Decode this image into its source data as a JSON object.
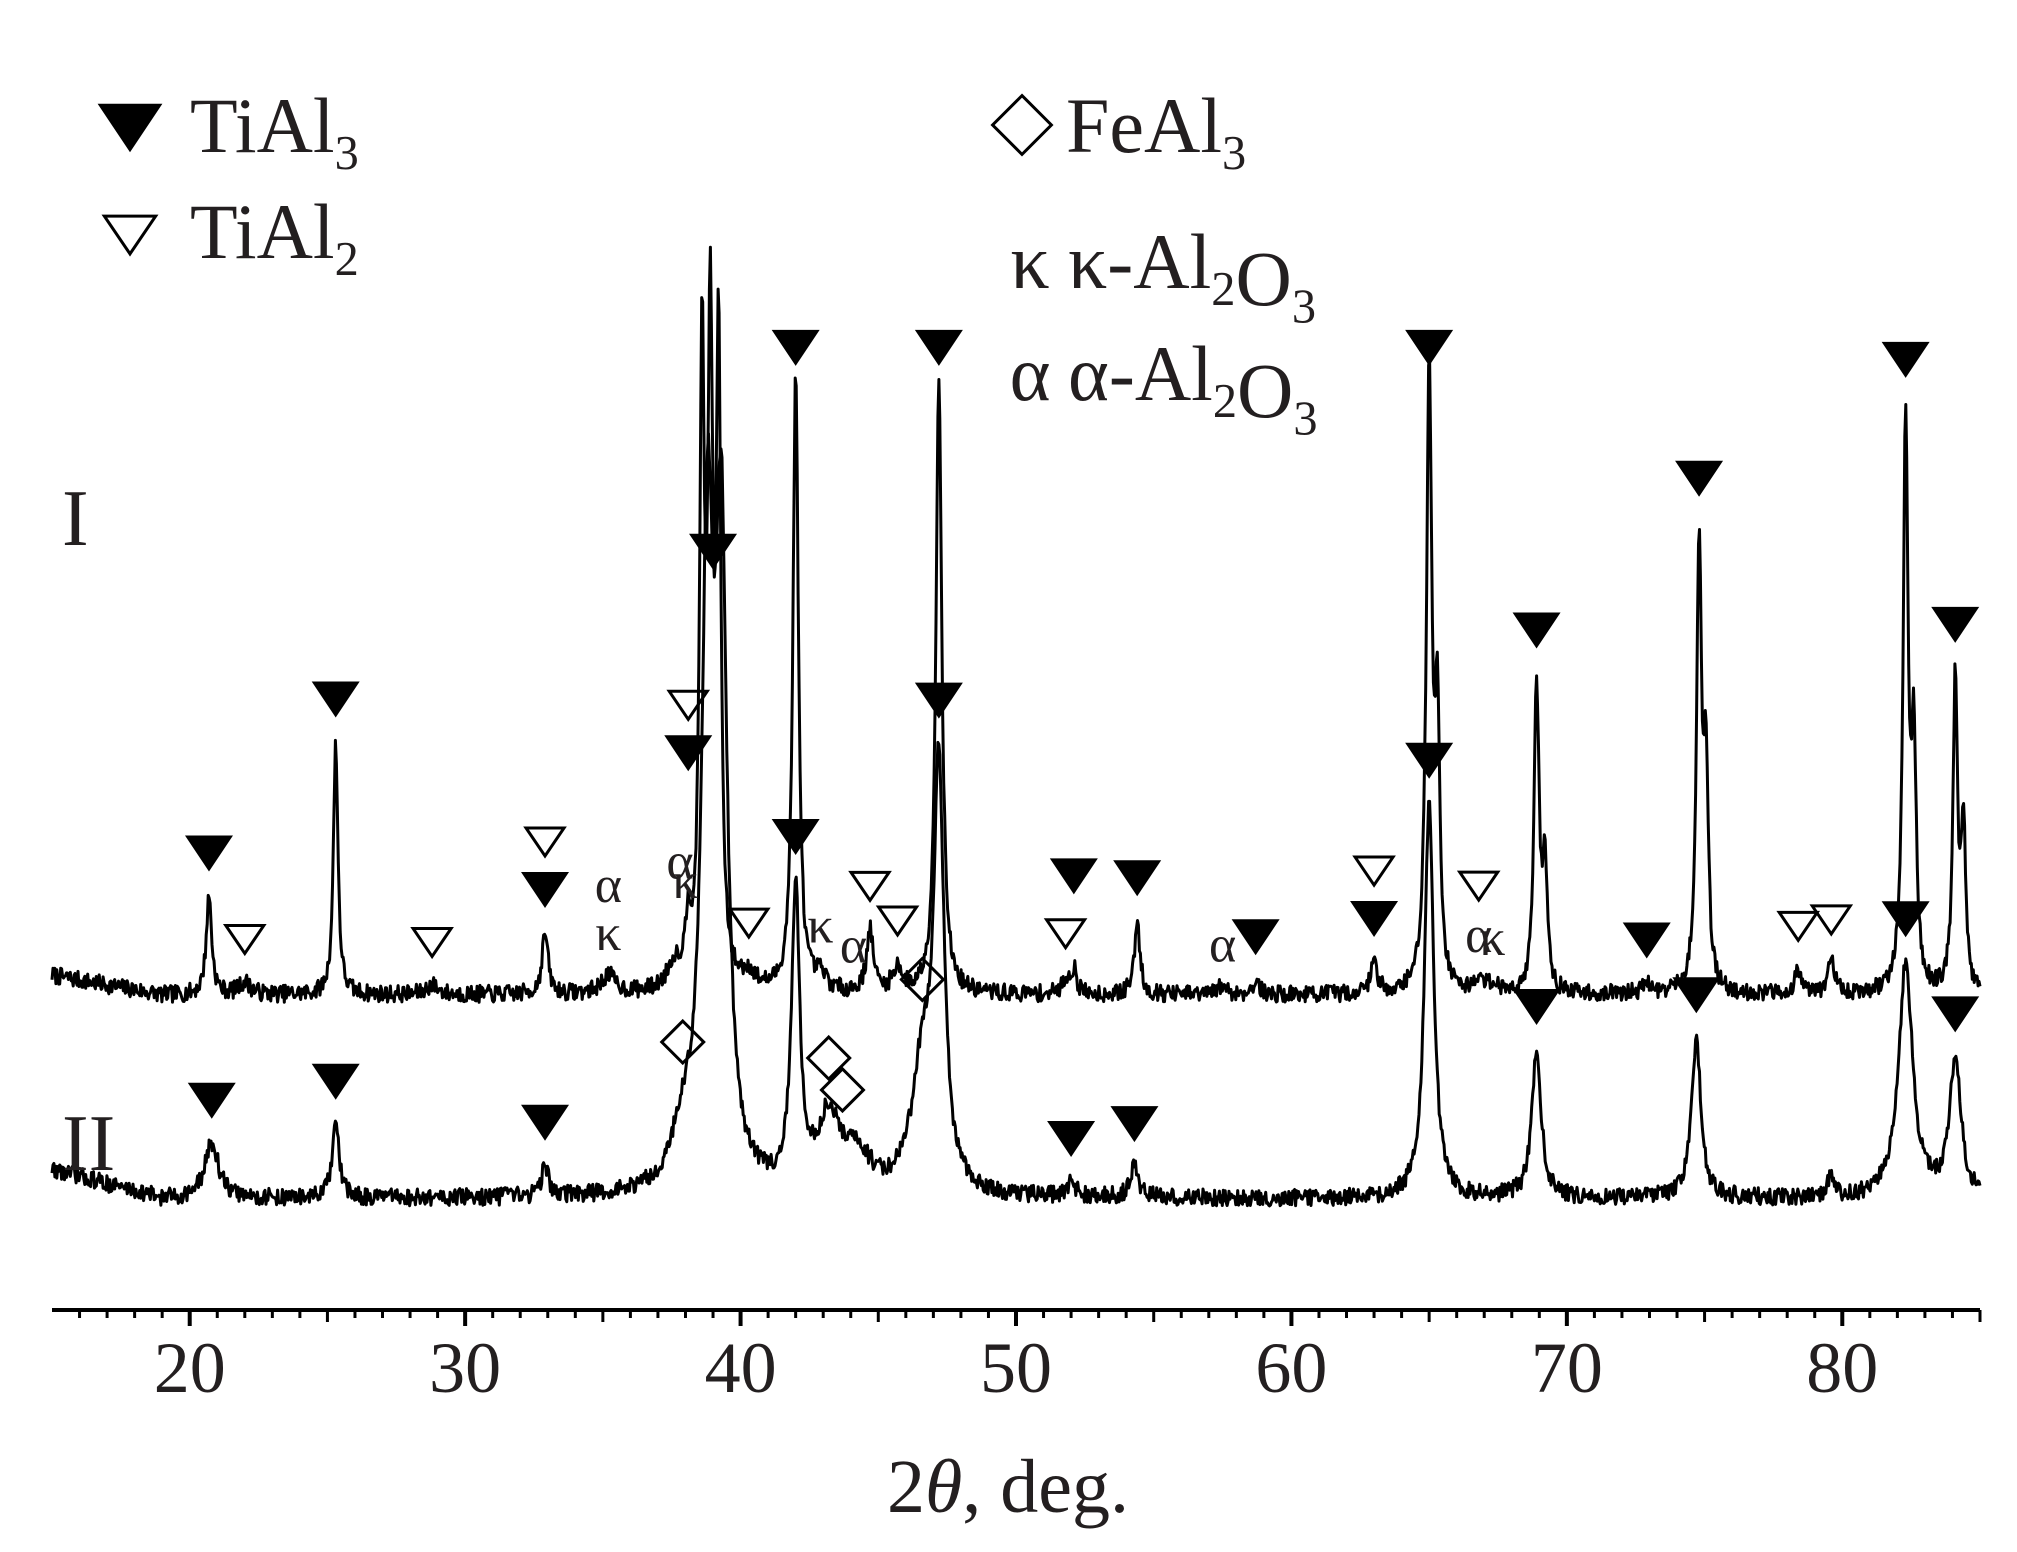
{
  "chart_data": {
    "type": "line",
    "xlabel_prefix": "2",
    "xlabel_symbol": "θ",
    "xlabel_suffix": ", deg.",
    "ylabel": "",
    "xlim": [
      15,
      85
    ],
    "tick_labels": [
      "20",
      "30",
      "40",
      "50",
      "60",
      "70",
      "80"
    ],
    "ylim": [
      0,
      1
    ],
    "grid": false,
    "legend": {
      "placement": "top",
      "entries": [
        {
          "symbol": "filled-triangle",
          "name": "TiAl",
          "sub": "3"
        },
        {
          "symbol": "open-triangle",
          "name": "TiAl",
          "sub": "2"
        },
        {
          "symbol": "diamond",
          "name": "FeAl",
          "sub": "3"
        },
        {
          "symbol": "text",
          "glyph": "κ",
          "parts": [
            [
              "κ-Al",
              ""
            ],
            [
              "2",
              "sub"
            ],
            [
              "O",
              ""
            ],
            [
              "3",
              "sub"
            ]
          ]
        },
        {
          "symbol": "text",
          "glyph": "α",
          "parts": [
            [
              "α-Al",
              ""
            ],
            [
              "2",
              "sub"
            ],
            [
              "O",
              ""
            ],
            [
              "3",
              "sub"
            ]
          ]
        }
      ]
    },
    "series": [
      {
        "name": "I",
        "baseline": 0.255,
        "peaks": [
          [
            20.7,
            0.08,
            0.12
          ],
          [
            22.0,
            0.01,
            0.25
          ],
          [
            25.3,
            0.205,
            0.1
          ],
          [
            28.8,
            0.008,
            0.25
          ],
          [
            32.9,
            0.05,
            0.13
          ],
          [
            35.2,
            0.015,
            0.3
          ],
          [
            37.6,
            0.02,
            0.3
          ],
          [
            38.1,
            0.045,
            0.12
          ],
          [
            38.6,
            0.5,
            0.1
          ],
          [
            38.9,
            0.5,
            0.11
          ],
          [
            39.2,
            0.5,
            0.1
          ],
          [
            40.3,
            0.012,
            0.3
          ],
          [
            42.0,
            0.5,
            0.12
          ],
          [
            42.9,
            0.012,
            0.25
          ],
          [
            44.7,
            0.05,
            0.15
          ],
          [
            45.7,
            0.02,
            0.2
          ],
          [
            47.2,
            0.5,
            0.13
          ],
          [
            51.8,
            0.012,
            0.15
          ],
          [
            52.1,
            0.02,
            0.12
          ],
          [
            54.4,
            0.06,
            0.12
          ],
          [
            57.5,
            0.007,
            0.2
          ],
          [
            58.7,
            0.012,
            0.13
          ],
          [
            63.0,
            0.025,
            0.15
          ],
          [
            65.0,
            0.5,
            0.12
          ],
          [
            65.3,
            0.21,
            0.1
          ],
          [
            66.8,
            0.01,
            0.2
          ],
          [
            67.3,
            0.008,
            0.2
          ],
          [
            68.9,
            0.25,
            0.11
          ],
          [
            69.2,
            0.1,
            0.1
          ],
          [
            72.9,
            0.008,
            0.2
          ],
          [
            74.8,
            0.36,
            0.11
          ],
          [
            75.05,
            0.17,
            0.1
          ],
          [
            78.4,
            0.02,
            0.15
          ],
          [
            79.6,
            0.025,
            0.15
          ],
          [
            82.3,
            0.46,
            0.11
          ],
          [
            82.6,
            0.19,
            0.1
          ],
          [
            84.1,
            0.25,
            0.1
          ],
          [
            84.4,
            0.13,
            0.1
          ]
        ]
      },
      {
        "name": "II",
        "baseline": 0.09,
        "peaks": [
          [
            20.8,
            0.045,
            0.3
          ],
          [
            25.3,
            0.06,
            0.15
          ],
          [
            32.9,
            0.025,
            0.15
          ],
          [
            37.9,
            0.04,
            0.5
          ],
          [
            38.8,
            0.5,
            0.25
          ],
          [
            39.3,
            0.5,
            0.25
          ],
          [
            42.0,
            0.24,
            0.18
          ],
          [
            43.2,
            0.06,
            0.45
          ],
          [
            44.2,
            0.03,
            0.6
          ],
          [
            46.6,
            0.1,
            0.45
          ],
          [
            47.2,
            0.33,
            0.22
          ],
          [
            52.0,
            0.012,
            0.2
          ],
          [
            54.3,
            0.025,
            0.18
          ],
          [
            65.0,
            0.32,
            0.2
          ],
          [
            68.9,
            0.12,
            0.2
          ],
          [
            74.7,
            0.13,
            0.2
          ],
          [
            79.6,
            0.02,
            0.12
          ],
          [
            82.3,
            0.19,
            0.3
          ],
          [
            84.1,
            0.11,
            0.25
          ]
        ]
      }
    ],
    "series_labels": [
      "I",
      "II"
    ],
    "annotations_I": [
      {
        "x": 20.7,
        "sym": "filled-triangle"
      },
      {
        "x": 22.0,
        "sym": "open-triangle"
      },
      {
        "x": 25.3,
        "sym": "filled-triangle"
      },
      {
        "x": 28.8,
        "sym": "open-triangle"
      },
      {
        "x": 32.9,
        "sym": "filled-triangle"
      },
      {
        "x": 32.9,
        "sym": "open-triangle"
      },
      {
        "x": 35.2,
        "sym": "text",
        "text": "κ"
      },
      {
        "x": 35.2,
        "sym": "text",
        "text": "α"
      },
      {
        "x": 38.0,
        "sym": "text",
        "text": "κ"
      },
      {
        "x": 37.8,
        "sym": "text",
        "text": "α"
      },
      {
        "x": 38.1,
        "sym": "filled-triangle"
      },
      {
        "x": 38.1,
        "sym": "open-triangle"
      },
      {
        "x": 40.3,
        "sym": "open-triangle"
      },
      {
        "x": 42.0,
        "sym": "filled-triangle"
      },
      {
        "x": 42.9,
        "sym": "text",
        "text": "κ"
      },
      {
        "x": 44.1,
        "sym": "text",
        "text": "α"
      },
      {
        "x": 44.7,
        "sym": "open-triangle"
      },
      {
        "x": 45.7,
        "sym": "open-triangle"
      },
      {
        "x": 47.2,
        "sym": "filled-triangle"
      },
      {
        "x": 51.8,
        "sym": "open-triangle"
      },
      {
        "x": 52.1,
        "sym": "filled-triangle"
      },
      {
        "x": 54.4,
        "sym": "filled-triangle"
      },
      {
        "x": 57.5,
        "sym": "text",
        "text": "α"
      },
      {
        "x": 58.7,
        "sym": "filled-triangle"
      },
      {
        "x": 63.0,
        "sym": "filled-triangle"
      },
      {
        "x": 63.0,
        "sym": "open-triangle"
      },
      {
        "x": 65.0,
        "sym": "filled-triangle"
      },
      {
        "x": 66.8,
        "sym": "text",
        "text": "α"
      },
      {
        "x": 66.8,
        "sym": "open-triangle"
      },
      {
        "x": 67.3,
        "sym": "text",
        "text": "κ"
      },
      {
        "x": 68.9,
        "sym": "filled-triangle"
      },
      {
        "x": 72.9,
        "sym": "filled-triangle"
      },
      {
        "x": 74.8,
        "sym": "filled-triangle"
      },
      {
        "x": 78.4,
        "sym": "open-triangle"
      },
      {
        "x": 79.6,
        "sym": "open-triangle"
      },
      {
        "x": 82.3,
        "sym": "filled-triangle"
      },
      {
        "x": 84.1,
        "sym": "filled-triangle"
      }
    ],
    "annotations_II": [
      {
        "x": 20.8,
        "sym": "filled-triangle"
      },
      {
        "x": 25.3,
        "sym": "filled-triangle"
      },
      {
        "x": 32.9,
        "sym": "filled-triangle"
      },
      {
        "x": 37.9,
        "sym": "diamond"
      },
      {
        "x": 39.0,
        "sym": "filled-triangle"
      },
      {
        "x": 42.0,
        "sym": "filled-triangle"
      },
      {
        "x": 43.2,
        "sym": "diamond"
      },
      {
        "x": 43.7,
        "sym": "diamond"
      },
      {
        "x": 46.6,
        "sym": "diamond"
      },
      {
        "x": 47.2,
        "sym": "filled-triangle"
      },
      {
        "x": 52.0,
        "sym": "filled-triangle"
      },
      {
        "x": 54.3,
        "sym": "filled-triangle"
      },
      {
        "x": 65.0,
        "sym": "filled-triangle"
      },
      {
        "x": 68.9,
        "sym": "filled-triangle"
      },
      {
        "x": 74.7,
        "sym": "filled-triangle"
      },
      {
        "x": 82.3,
        "sym": "filled-triangle"
      },
      {
        "x": 84.1,
        "sym": "filled-triangle"
      }
    ]
  }
}
